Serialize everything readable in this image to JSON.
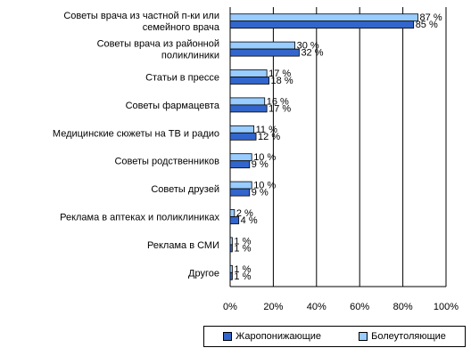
{
  "chart_data": {
    "type": "bar",
    "orientation": "horizontal",
    "categories": [
      "Советы врача из частной п-ки или семейного врача",
      "Советы врача из районной поликлиники",
      "Статьи в прессе",
      "Советы фармацевта",
      "Медицинские сюжеты на ТВ и радио",
      "Советы родственников",
      "Советы друзей",
      "Реклама в аптеках и поликлиниках",
      "Реклама в СМИ",
      "Другое"
    ],
    "category_lines": [
      [
        "Советы врача из частной п-ки или",
        "семейного врача"
      ],
      [
        "Советы врача из районной",
        "поликлиники"
      ],
      [
        "Статьи в прессе"
      ],
      [
        "Советы фармацевта"
      ],
      [
        "Медицинские сюжеты на ТВ и радио"
      ],
      [
        "Советы родственников"
      ],
      [
        "Советы друзей"
      ],
      [
        "Реклама в аптеках и поликлиниках"
      ],
      [
        "Реклама в СМИ"
      ],
      [
        "Другое"
      ]
    ],
    "series": [
      {
        "name": "Болеутоляющие",
        "color": "#99ccff",
        "values": [
          87,
          30,
          17,
          16,
          11,
          10,
          10,
          2,
          1,
          1
        ],
        "labels": [
          "87 %",
          "30 %",
          "17 %",
          "16 %",
          "11 %",
          "10 %",
          "10 %",
          "2 %",
          "1 %",
          "1 %"
        ]
      },
      {
        "name": "Жаропонижающие",
        "color": "#3366cc",
        "values": [
          85,
          32,
          18,
          17,
          12,
          9,
          9,
          4,
          1,
          1
        ],
        "labels": [
          "85 %",
          "32 %",
          "18 %",
          "17 %",
          "12 %",
          "9 %",
          "9 %",
          "4 %",
          "1 %",
          "1 %"
        ]
      }
    ],
    "xlim": [
      0,
      100
    ],
    "xticks": [
      "0%",
      "20%",
      "40%",
      "60%",
      "80%",
      "100%"
    ],
    "grid": true,
    "legend_position": "bottom-right"
  },
  "legend": {
    "item1": "Жаропонижающие",
    "item2": "Болеутоляющие"
  }
}
